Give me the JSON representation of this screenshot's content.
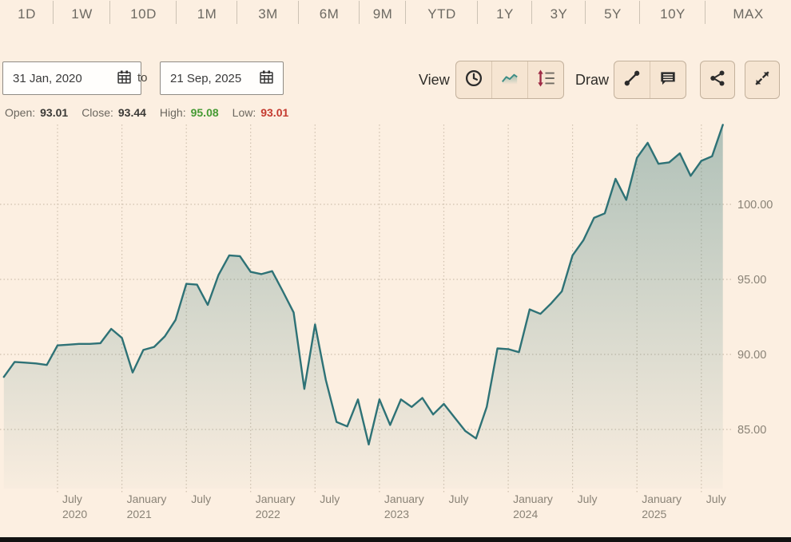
{
  "tabs": {
    "items": [
      "1D",
      "1W",
      "10D",
      "1M",
      "3M",
      "6M",
      "9M",
      "YTD",
      "1Y",
      "3Y",
      "5Y",
      "10Y",
      "MAX"
    ]
  },
  "controls": {
    "date_from": "31 Jan, 2020",
    "to_label": "to",
    "date_to": "21 Sep, 2025",
    "view_label": "View",
    "draw_label": "Draw"
  },
  "stats": {
    "open_label": "Open:",
    "open": "93.01",
    "close_label": "Close:",
    "close": "93.44",
    "high_label": "High:",
    "high": "95.08",
    "low_label": "Low:",
    "low": "93.01"
  },
  "colors": {
    "background": "#fcefe1",
    "line": "#2e7276",
    "fill_top": "rgba(49,116,116,0.38)",
    "fill_bottom": "rgba(49,116,116,0.02)",
    "grid": "#cfc0ae",
    "axis_text": "#8a8377",
    "high_green": "#459a33",
    "low_red": "#c43a2f",
    "icon_dark": "#2b2b2b",
    "icon_maroon": "#9e2b45"
  },
  "chart_data": {
    "type": "area",
    "interval": "monthly",
    "months": [
      "2020-02",
      "2020-03",
      "2020-04",
      "2020-05",
      "2020-06",
      "2020-07",
      "2020-08",
      "2020-09",
      "2020-10",
      "2020-11",
      "2020-12",
      "2021-01",
      "2021-02",
      "2021-03",
      "2021-04",
      "2021-05",
      "2021-06",
      "2021-07",
      "2021-08",
      "2021-09",
      "2021-10",
      "2021-11",
      "2021-12",
      "2022-01",
      "2022-02",
      "2022-03",
      "2022-04",
      "2022-05",
      "2022-06",
      "2022-07",
      "2022-08",
      "2022-09",
      "2022-10",
      "2022-11",
      "2022-12",
      "2023-01",
      "2023-02",
      "2023-03",
      "2023-04",
      "2023-05",
      "2023-06",
      "2023-07",
      "2023-08",
      "2023-09",
      "2023-10",
      "2023-11",
      "2023-12",
      "2024-01",
      "2024-02",
      "2024-03",
      "2024-04",
      "2024-05",
      "2024-06",
      "2024-07",
      "2024-08",
      "2024-09",
      "2024-10",
      "2024-11",
      "2024-12",
      "2025-01",
      "2025-02",
      "2025-03",
      "2025-04",
      "2025-05",
      "2025-06",
      "2025-07",
      "2025-08",
      "2025-09"
    ],
    "values": [
      88.5,
      89.5,
      89.45,
      89.4,
      89.3,
      90.6,
      90.65,
      90.7,
      90.7,
      90.75,
      91.7,
      91.1,
      88.8,
      90.3,
      90.5,
      91.2,
      92.3,
      94.7,
      94.65,
      93.3,
      95.3,
      96.6,
      96.55,
      95.5,
      95.35,
      95.55,
      94.2,
      92.8,
      87.7,
      92.0,
      88.3,
      85.5,
      85.2,
      87.0,
      84.0,
      87.0,
      85.3,
      87.0,
      86.5,
      87.1,
      86.0,
      86.7,
      85.8,
      84.9,
      84.4,
      86.5,
      90.4,
      90.35,
      90.15,
      93.0,
      92.7,
      93.4,
      94.2,
      96.6,
      97.6,
      99.1,
      99.4,
      101.7,
      100.3,
      103.1,
      104.1,
      102.7,
      102.8,
      103.4,
      101.9,
      102.9,
      103.2,
      105.3
    ],
    "y_ticks": [
      {
        "value": 85,
        "label": "85.00"
      },
      {
        "value": 90,
        "label": "90.00"
      },
      {
        "value": 95,
        "label": "95.00"
      },
      {
        "value": 100,
        "label": "100.00"
      }
    ],
    "x_ticks": [
      {
        "month": "2020-07",
        "label": "July",
        "sub": "2020"
      },
      {
        "month": "2021-01",
        "label": "January",
        "sub": "2021"
      },
      {
        "month": "2021-07",
        "label": "July"
      },
      {
        "month": "2022-01",
        "label": "January",
        "sub": "2022"
      },
      {
        "month": "2022-07",
        "label": "July"
      },
      {
        "month": "2023-01",
        "label": "January",
        "sub": "2023"
      },
      {
        "month": "2023-07",
        "label": "July"
      },
      {
        "month": "2024-01",
        "label": "January",
        "sub": "2024"
      },
      {
        "month": "2024-07",
        "label": "July"
      },
      {
        "month": "2025-01",
        "label": "January",
        "sub": "2025"
      },
      {
        "month": "2025-07",
        "label": "July"
      }
    ],
    "ylim": [
      83.4,
      106.1
    ],
    "grid": true,
    "legend": false,
    "y_axis_side": "right",
    "title": ""
  }
}
